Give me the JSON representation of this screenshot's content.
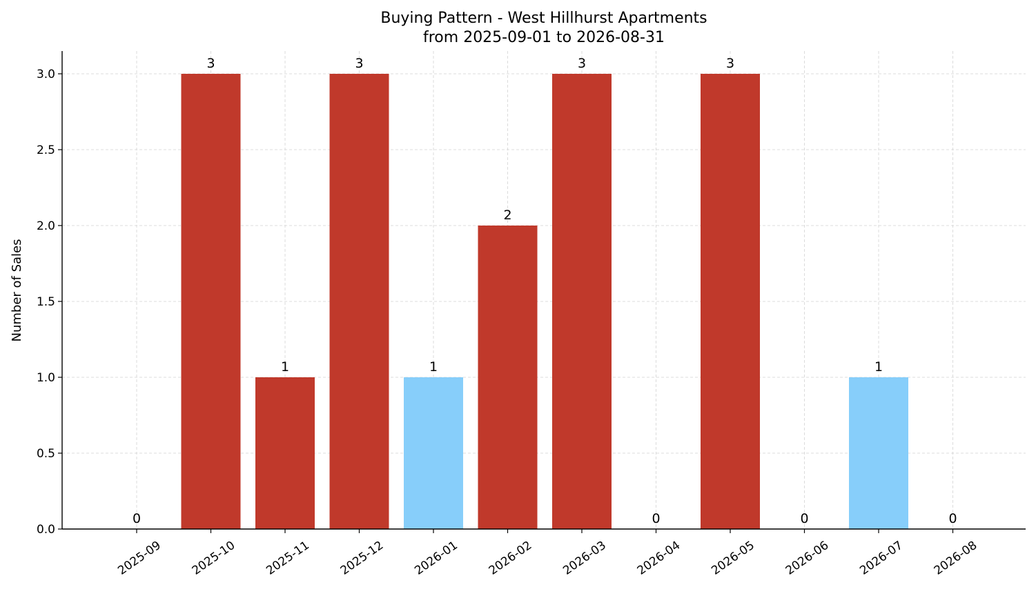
{
  "chart_data": {
    "type": "bar",
    "title": "Buying Pattern - West Hillhurst Apartments",
    "subtitle": "from 2025-09-01 to 2026-08-31",
    "xlabel": "",
    "ylabel": "Number of Sales",
    "categories": [
      "2025-09",
      "2025-10",
      "2025-11",
      "2025-12",
      "2026-01",
      "2026-02",
      "2026-03",
      "2026-04",
      "2026-05",
      "2026-06",
      "2026-07",
      "2026-08"
    ],
    "values": [
      0,
      3,
      1,
      3,
      1,
      2,
      3,
      0,
      3,
      0,
      1,
      0
    ],
    "bar_colors": [
      "#c0392b",
      "#c0392b",
      "#c0392b",
      "#c0392b",
      "#87cefa",
      "#c0392b",
      "#c0392b",
      "#c0392b",
      "#c0392b",
      "#c0392b",
      "#87cefa",
      "#c0392b"
    ],
    "data_labels": [
      "0",
      "3",
      "1",
      "3",
      "1",
      "2",
      "3",
      "0",
      "3",
      "0",
      "1",
      "0"
    ],
    "yticks": [
      "0.0",
      "0.5",
      "1.0",
      "1.5",
      "2.0",
      "2.5",
      "3.0"
    ],
    "ylim": [
      0,
      3.15
    ],
    "grid": true,
    "grid_style": "dashed"
  }
}
